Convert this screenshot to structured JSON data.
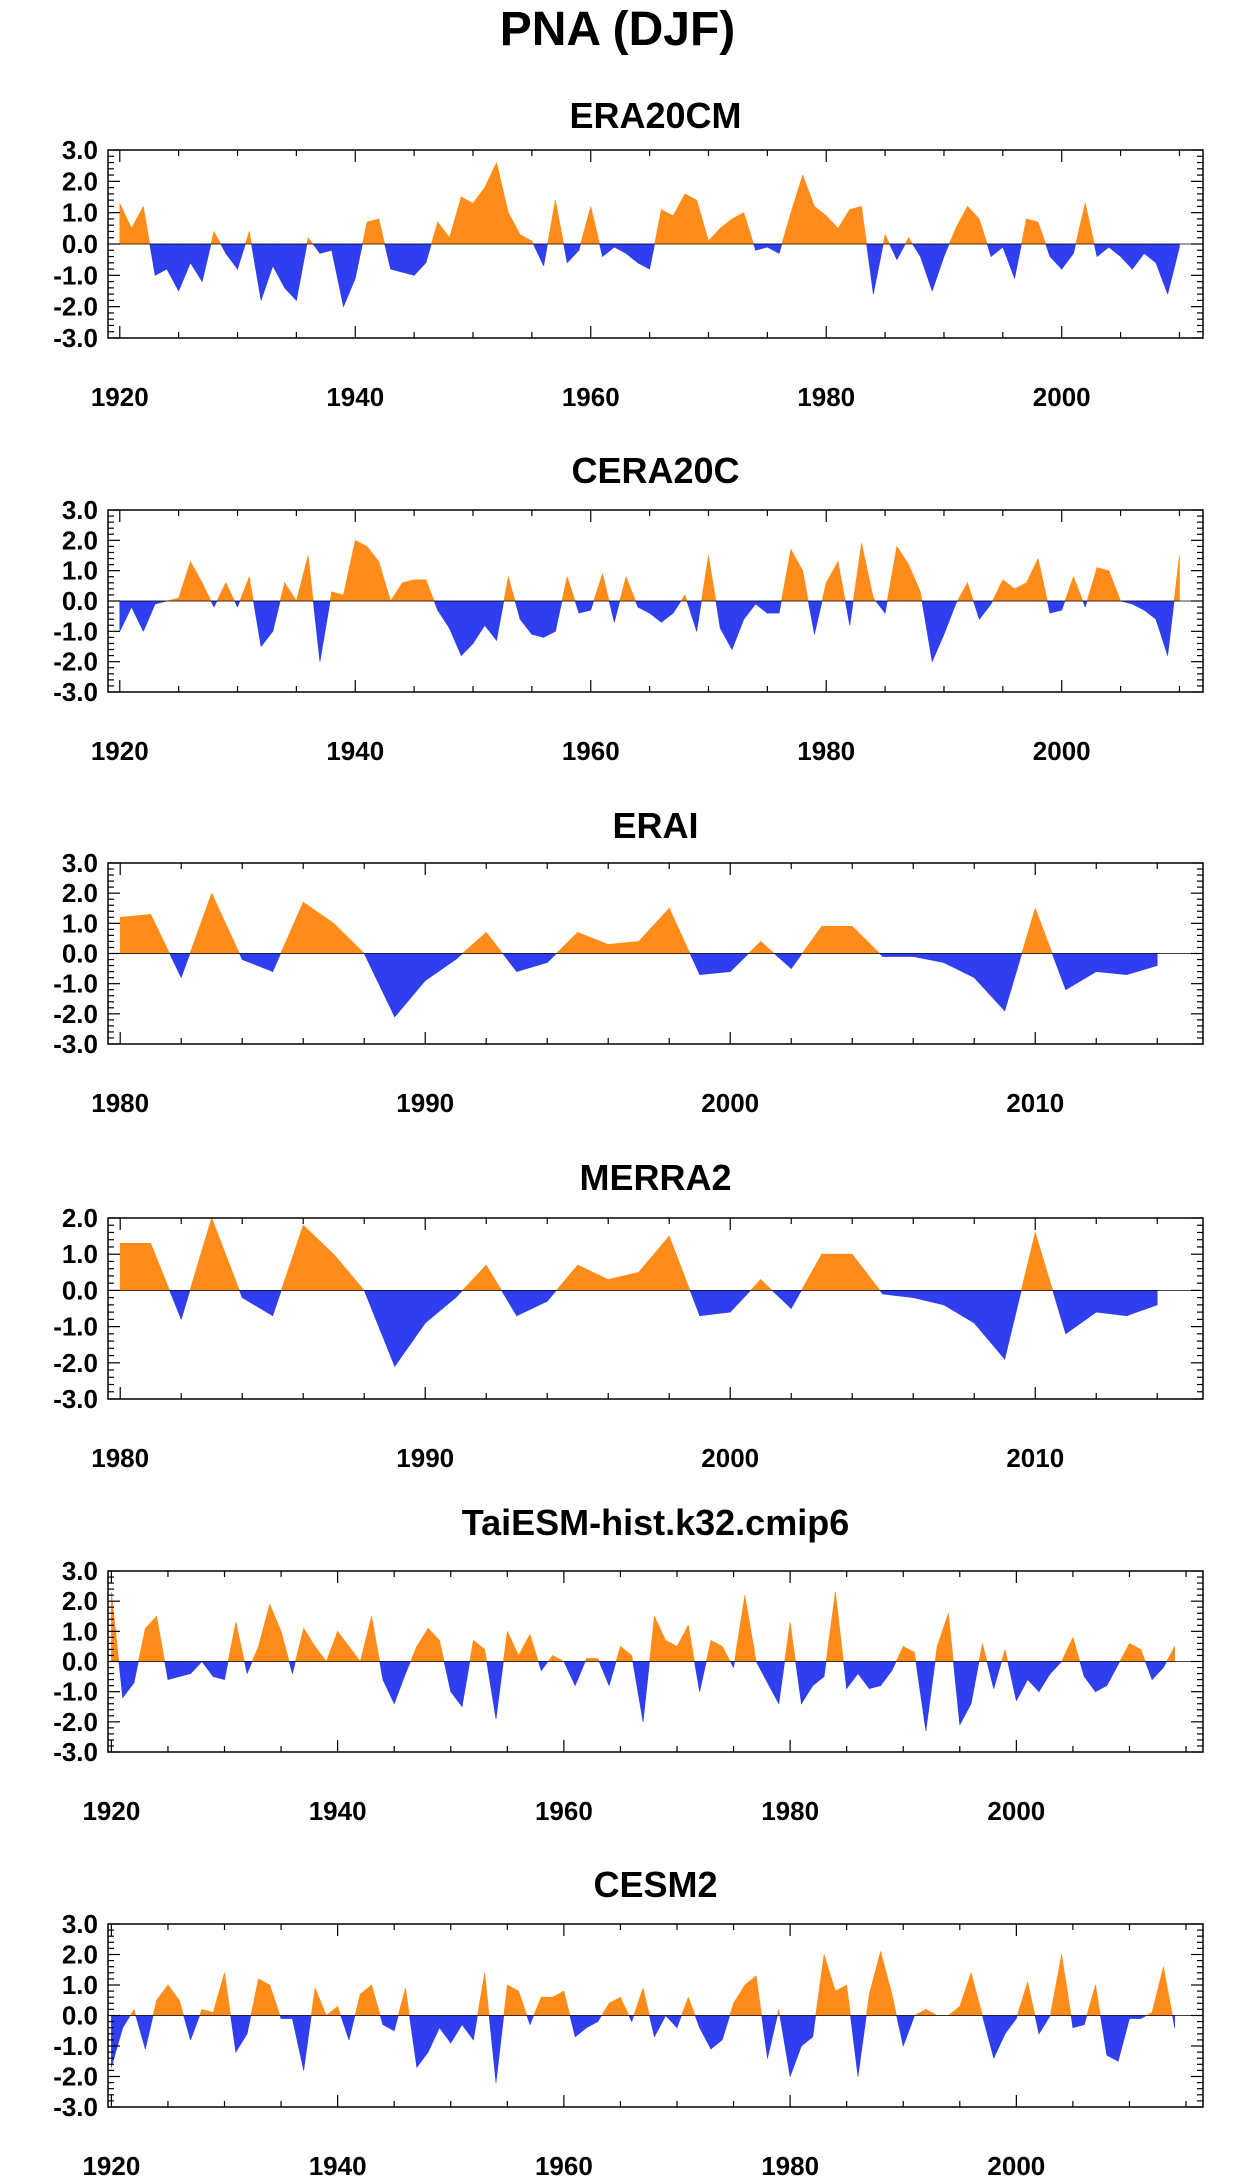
{
  "figure": {
    "title": "PNA (DJF)",
    "colors": {
      "positive": "#ff8c1a",
      "negative": "#2f3fef",
      "axis": "#000000"
    }
  },
  "chart_data": [
    {
      "type": "area",
      "title": "ERA20CM",
      "ylim": [
        -3,
        3
      ],
      "yticks": [
        "3.0",
        "2.0",
        "1.0",
        "0.0",
        "-1.0",
        "-2.0",
        "-3.0"
      ],
      "xlim": [
        1919,
        2012
      ],
      "xticks": [
        1920,
        1940,
        1960,
        1980,
        2000
      ],
      "x": [
        1920,
        1921,
        1922,
        1923,
        1924,
        1925,
        1926,
        1927,
        1928,
        1929,
        1930,
        1931,
        1932,
        1933,
        1934,
        1935,
        1936,
        1937,
        1938,
        1939,
        1940,
        1941,
        1942,
        1943,
        1944,
        1945,
        1946,
        1947,
        1948,
        1949,
        1950,
        1951,
        1952,
        1953,
        1954,
        1955,
        1956,
        1957,
        1958,
        1959,
        1960,
        1961,
        1962,
        1963,
        1964,
        1965,
        1966,
        1967,
        1968,
        1969,
        1970,
        1971,
        1972,
        1973,
        1974,
        1975,
        1976,
        1977,
        1978,
        1979,
        1980,
        1981,
        1982,
        1983,
        1984,
        1985,
        1986,
        1987,
        1988,
        1989,
        1990,
        1991,
        1992,
        1993,
        1994,
        1995,
        1996,
        1997,
        1998,
        1999,
        2000,
        2001,
        2002,
        2003,
        2004,
        2005,
        2006,
        2007,
        2008,
        2009,
        2010
      ],
      "y": [
        1.3,
        0.5,
        1.2,
        -1.0,
        -0.8,
        -1.5,
        -0.6,
        -1.2,
        0.4,
        -0.3,
        -0.8,
        0.4,
        -1.8,
        -0.7,
        -1.4,
        -1.8,
        0.2,
        -0.3,
        -0.2,
        -2.0,
        -1.1,
        0.7,
        0.8,
        -0.8,
        -0.9,
        -1.0,
        -0.6,
        0.7,
        0.2,
        1.5,
        1.3,
        1.8,
        2.6,
        1.0,
        0.3,
        0.1,
        -0.7,
        1.4,
        -0.6,
        -0.2,
        1.2,
        -0.4,
        -0.1,
        -0.3,
        -0.6,
        -0.8,
        1.1,
        0.9,
        1.6,
        1.4,
        0.1,
        0.5,
        0.8,
        1.0,
        -0.2,
        -0.1,
        -0.3,
        1.0,
        2.2,
        1.2,
        0.9,
        0.5,
        1.1,
        1.2,
        -1.6,
        0.3,
        -0.5,
        0.2,
        -0.4,
        -1.5,
        -0.4,
        0.5,
        1.2,
        0.8,
        -0.4,
        -0.1,
        -1.1,
        0.8,
        0.7,
        -0.4,
        -0.8,
        -0.3,
        1.3,
        -0.4,
        -0.1,
        -0.4,
        -0.8,
        -0.3,
        -0.6,
        -1.6,
        -0.1
      ]
    },
    {
      "type": "area",
      "title": "CERA20C",
      "ylim": [
        -3,
        3
      ],
      "yticks": [
        "3.0",
        "2.0",
        "1.0",
        "0.0",
        "-1.0",
        "-2.0",
        "-3.0"
      ],
      "xlim": [
        1919,
        2012
      ],
      "xticks": [
        1920,
        1940,
        1960,
        1980,
        2000
      ],
      "x": [
        1920,
        1921,
        1922,
        1923,
        1924,
        1925,
        1926,
        1927,
        1928,
        1929,
        1930,
        1931,
        1932,
        1933,
        1934,
        1935,
        1936,
        1937,
        1938,
        1939,
        1940,
        1941,
        1942,
        1943,
        1944,
        1945,
        1946,
        1947,
        1948,
        1949,
        1950,
        1951,
        1952,
        1953,
        1954,
        1955,
        1956,
        1957,
        1958,
        1959,
        1960,
        1961,
        1962,
        1963,
        1964,
        1965,
        1966,
        1967,
        1968,
        1969,
        1970,
        1971,
        1972,
        1973,
        1974,
        1975,
        1976,
        1977,
        1978,
        1979,
        1980,
        1981,
        1982,
        1983,
        1984,
        1985,
        1986,
        1987,
        1988,
        1989,
        1990,
        1991,
        1992,
        1993,
        1994,
        1995,
        1996,
        1997,
        1998,
        1999,
        2000,
        2001,
        2002,
        2003,
        2004,
        2005,
        2006,
        2007,
        2008,
        2009,
        2010
      ],
      "y": [
        -1.0,
        -0.2,
        -1.0,
        -0.1,
        0.0,
        0.1,
        1.3,
        0.6,
        -0.2,
        0.6,
        -0.2,
        0.8,
        -1.5,
        -1.0,
        0.6,
        0.0,
        1.5,
        -2.0,
        0.3,
        0.2,
        2.0,
        1.8,
        1.3,
        0.0,
        0.6,
        0.7,
        0.7,
        -0.3,
        -0.9,
        -1.8,
        -1.4,
        -0.8,
        -1.3,
        0.8,
        -0.6,
        -1.1,
        -1.2,
        -1.0,
        0.8,
        -0.4,
        -0.3,
        0.9,
        -0.7,
        0.8,
        -0.2,
        -0.4,
        -0.7,
        -0.4,
        0.2,
        -1.0,
        1.5,
        -0.9,
        -1.6,
        -0.6,
        -0.1,
        -0.4,
        -0.4,
        1.7,
        1.0,
        -1.1,
        0.6,
        1.3,
        -0.8,
        1.9,
        0.1,
        -0.4,
        1.8,
        1.2,
        0.3,
        -2.0,
        -1.1,
        -0.1,
        0.6,
        -0.6,
        -0.1,
        0.7,
        0.4,
        0.6,
        1.4,
        -0.4,
        -0.3,
        0.8,
        -0.2,
        1.1,
        1.0,
        0.0,
        -0.1,
        -0.3,
        -0.6,
        -1.8,
        1.5
      ]
    },
    {
      "type": "area",
      "title": "ERAI",
      "ylim": [
        -3,
        3
      ],
      "yticks": [
        "3.0",
        "2.0",
        "1.0",
        "0.0",
        "-1.0",
        "-2.0",
        "-3.0"
      ],
      "xlim": [
        1979.6,
        2015.5
      ],
      "xticks": [
        1980,
        1990,
        2000,
        2010
      ],
      "x": [
        1980,
        1981,
        1982,
        1983,
        1984,
        1985,
        1986,
        1987,
        1988,
        1989,
        1990,
        1991,
        1992,
        1993,
        1994,
        1995,
        1996,
        1997,
        1998,
        1999,
        2000,
        2001,
        2002,
        2003,
        2004,
        2005,
        2006,
        2007,
        2008,
        2009,
        2010,
        2011,
        2012,
        2013,
        2014
      ],
      "y": [
        1.2,
        1.3,
        -0.8,
        2.0,
        -0.2,
        -0.6,
        1.7,
        1.0,
        0.0,
        -2.1,
        -0.9,
        -0.2,
        0.7,
        -0.6,
        -0.3,
        0.7,
        0.3,
        0.4,
        1.5,
        -0.7,
        -0.6,
        0.4,
        -0.5,
        0.9,
        0.9,
        -0.1,
        -0.1,
        -0.3,
        -0.8,
        -1.9,
        1.5,
        -1.2,
        -0.6,
        -0.7,
        -0.4
      ]
    },
    {
      "type": "area",
      "title": "MERRA2",
      "ylim": [
        -3,
        2
      ],
      "yticks": [
        "2.0",
        "1.0",
        "0.0",
        "-1.0",
        "-2.0",
        "-3.0"
      ],
      "xlim": [
        1979.6,
        2015.5
      ],
      "xticks": [
        1980,
        1990,
        2000,
        2010
      ],
      "x": [
        1980,
        1981,
        1982,
        1983,
        1984,
        1985,
        1986,
        1987,
        1988,
        1989,
        1990,
        1991,
        1992,
        1993,
        1994,
        1995,
        1996,
        1997,
        1998,
        1999,
        2000,
        2001,
        2002,
        2003,
        2004,
        2005,
        2006,
        2007,
        2008,
        2009,
        2010,
        2011,
        2012,
        2013,
        2014
      ],
      "y": [
        1.3,
        1.3,
        -0.8,
        2.0,
        -0.2,
        -0.7,
        1.8,
        1.0,
        0.0,
        -2.1,
        -0.9,
        -0.2,
        0.7,
        -0.7,
        -0.3,
        0.7,
        0.3,
        0.5,
        1.5,
        -0.7,
        -0.6,
        0.3,
        -0.5,
        1.0,
        1.0,
        -0.1,
        -0.2,
        -0.4,
        -0.9,
        -1.9,
        1.6,
        -1.2,
        -0.6,
        -0.7,
        -0.4
      ]
    },
    {
      "type": "area",
      "title": "TaiESM-hist.k32.cmip6",
      "ylim": [
        -3,
        3
      ],
      "yticks": [
        "3.0",
        "2.0",
        "1.0",
        "0.0",
        "-1.0",
        "-2.0",
        "-3.0"
      ],
      "xlim": [
        1919.7,
        2016.5
      ],
      "xticks": [
        1920,
        1940,
        1960,
        1980,
        2000
      ],
      "x": [
        1920,
        1921,
        1922,
        1923,
        1924,
        1925,
        1926,
        1927,
        1928,
        1929,
        1930,
        1931,
        1932,
        1933,
        1934,
        1935,
        1936,
        1937,
        1938,
        1939,
        1940,
        1941,
        1942,
        1943,
        1944,
        1945,
        1946,
        1947,
        1948,
        1949,
        1950,
        1951,
        1952,
        1953,
        1954,
        1955,
        1956,
        1957,
        1958,
        1959,
        1960,
        1961,
        1962,
        1963,
        1964,
        1965,
        1966,
        1967,
        1968,
        1969,
        1970,
        1971,
        1972,
        1973,
        1974,
        1975,
        1976,
        1977,
        1978,
        1979,
        1980,
        1981,
        1982,
        1983,
        1984,
        1985,
        1986,
        1987,
        1988,
        1989,
        1990,
        1991,
        1992,
        1993,
        1994,
        1995,
        1996,
        1997,
        1998,
        1999,
        2000,
        2001,
        2002,
        2003,
        2004,
        2005,
        2006,
        2007,
        2008,
        2009,
        2010,
        2011,
        2012,
        2013,
        2014
      ],
      "y": [
        2.3,
        -1.2,
        -0.7,
        1.1,
        1.5,
        -0.6,
        -0.5,
        -0.4,
        0.0,
        -0.5,
        -0.6,
        1.3,
        -0.4,
        0.5,
        1.9,
        1.0,
        -0.4,
        1.1,
        0.5,
        0.0,
        1.0,
        0.5,
        0.0,
        1.5,
        -0.6,
        -1.4,
        -0.4,
        0.5,
        1.1,
        0.7,
        -1.0,
        -1.5,
        0.7,
        0.4,
        -1.9,
        1.0,
        0.2,
        0.9,
        -0.3,
        0.2,
        0.0,
        -0.8,
        0.1,
        0.1,
        -0.8,
        0.5,
        0.2,
        -2.0,
        1.5,
        0.7,
        0.5,
        1.2,
        -1.0,
        0.7,
        0.5,
        -0.2,
        2.2,
        0.0,
        -0.7,
        -1.4,
        1.3,
        -1.4,
        -0.8,
        -0.5,
        2.3,
        -0.9,
        -0.4,
        -0.9,
        -0.8,
        -0.3,
        0.5,
        0.3,
        -2.3,
        0.5,
        1.6,
        -2.1,
        -1.4,
        0.6,
        -0.9,
        0.4,
        -1.3,
        -0.6,
        -1.0,
        -0.4,
        0.0,
        0.8,
        -0.5,
        -1.0,
        -0.8,
        -0.1,
        0.6,
        0.4,
        -0.6,
        -0.2,
        0.5
      ]
    },
    {
      "type": "area",
      "title": "CESM2",
      "ylim": [
        -3,
        3
      ],
      "yticks": [
        "3.0",
        "2.0",
        "1.0",
        "0.0",
        "-1.0",
        "-2.0",
        "-3.0"
      ],
      "xlim": [
        1919.7,
        2016.5
      ],
      "xticks": [
        1920,
        1940,
        1960,
        1980,
        2000
      ],
      "x": [
        1920,
        1921,
        1922,
        1923,
        1924,
        1925,
        1926,
        1927,
        1928,
        1929,
        1930,
        1931,
        1932,
        1933,
        1934,
        1935,
        1936,
        1937,
        1938,
        1939,
        1940,
        1941,
        1942,
        1943,
        1944,
        1945,
        1946,
        1947,
        1948,
        1949,
        1950,
        1951,
        1952,
        1953,
        1954,
        1955,
        1956,
        1957,
        1958,
        1959,
        1960,
        1961,
        1962,
        1963,
        1964,
        1965,
        1966,
        1967,
        1968,
        1969,
        1970,
        1971,
        1972,
        1973,
        1974,
        1975,
        1976,
        1977,
        1978,
        1979,
        1980,
        1981,
        1982,
        1983,
        1984,
        1985,
        1986,
        1987,
        1988,
        1989,
        1990,
        1991,
        1992,
        1993,
        1994,
        1995,
        1996,
        1997,
        1998,
        1999,
        2000,
        2001,
        2002,
        2003,
        2004,
        2005,
        2006,
        2007,
        2008,
        2009,
        2010,
        2011,
        2012,
        2013,
        2014
      ],
      "y": [
        -1.7,
        -0.4,
        0.2,
        -1.1,
        0.5,
        1.0,
        0.5,
        -0.8,
        0.2,
        0.1,
        1.4,
        -1.2,
        -0.6,
        1.2,
        1.0,
        -0.1,
        -0.1,
        -1.8,
        0.9,
        0.0,
        0.3,
        -0.8,
        0.7,
        1.0,
        -0.3,
        -0.5,
        0.9,
        -1.7,
        -1.2,
        -0.4,
        -0.9,
        -0.3,
        -0.8,
        1.4,
        -2.2,
        1.0,
        0.8,
        -0.3,
        0.6,
        0.6,
        0.8,
        -0.7,
        -0.4,
        -0.2,
        0.4,
        0.6,
        -0.2,
        0.9,
        -0.7,
        0.0,
        -0.4,
        0.6,
        -0.4,
        -1.1,
        -0.8,
        0.4,
        1.0,
        1.3,
        -1.4,
        0.2,
        -2.0,
        -1.0,
        -0.7,
        2.0,
        0.8,
        1.0,
        -2.0,
        0.7,
        2.1,
        0.7,
        -1.0,
        0.0,
        0.2,
        0.0,
        0.0,
        0.3,
        1.4,
        0.0,
        -1.4,
        -0.6,
        -0.1,
        1.1,
        -0.6,
        0.0,
        2.0,
        -0.4,
        -0.3,
        1.0,
        -1.3,
        -1.5,
        -0.1,
        -0.1,
        0.1,
        1.6,
        -0.4
      ]
    }
  ]
}
